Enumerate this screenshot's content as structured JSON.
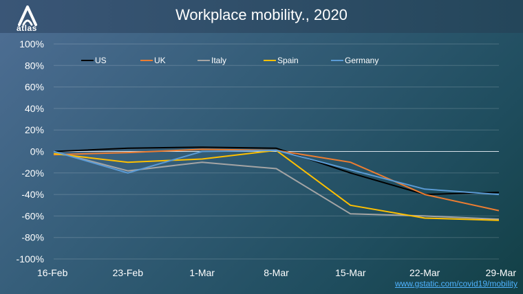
{
  "header": {
    "title": "Workplace mobility., 2020",
    "logo_text": "atlas"
  },
  "source_link": "www.gstatic.com/covid19/mobility",
  "colors": {
    "US": "#000000",
    "UK": "#ed7d31",
    "Italy": "#a5a5a5",
    "Spain": "#ffc000",
    "Germany": "#5b9bd5",
    "text": "#ffffff"
  },
  "chart_data": {
    "type": "line",
    "title": "Workplace mobility., 2020",
    "x": [
      "16-Feb",
      "23-Feb",
      "1-Mar",
      "8-Mar",
      "15-Mar",
      "22-Mar",
      "29-Mar"
    ],
    "ylim": [
      -100,
      100
    ],
    "yticks": [
      "100%",
      "80%",
      "60%",
      "40%",
      "20%",
      "0%",
      "-20%",
      "-40%",
      "-60%",
      "-80%",
      "-100%"
    ],
    "ytick_values": [
      100,
      80,
      60,
      40,
      20,
      0,
      -20,
      -40,
      -60,
      -80,
      -100
    ],
    "grid": true,
    "legend_position": "top",
    "series": [
      {
        "name": "US",
        "values": [
          0,
          3,
          4,
          3,
          -20,
          -40,
          -38
        ]
      },
      {
        "name": "UK",
        "values": [
          -3,
          -1,
          2,
          1,
          -10,
          -40,
          -55
        ]
      },
      {
        "name": "Italy",
        "values": [
          0,
          -18,
          -10,
          -16,
          -58,
          -60,
          -63
        ]
      },
      {
        "name": "Spain",
        "values": [
          -2,
          -10,
          -7,
          1,
          -50,
          -62,
          -64
        ]
      },
      {
        "name": "Germany",
        "values": [
          0,
          -20,
          0,
          1,
          -17,
          -35,
          -40
        ]
      }
    ]
  }
}
